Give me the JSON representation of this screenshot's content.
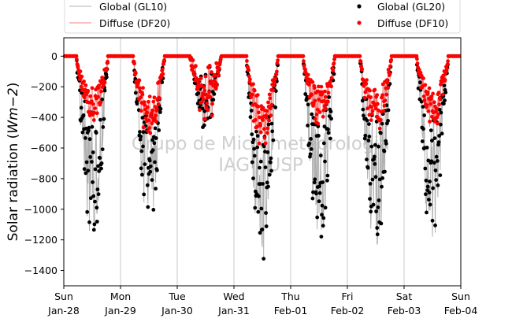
{
  "chart_data": {
    "type": "line",
    "title": "",
    "ylabel": "Solar radiation (Wm−2)",
    "ylabel_parts": [
      "Solar radiation (",
      "Wm",
      "−2",
      ")"
    ],
    "ylim": [
      -1500,
      120
    ],
    "yticks": [
      0,
      -200,
      -400,
      -600,
      -800,
      -1000,
      -1200,
      -1400
    ],
    "xlim_days": [
      0,
      7
    ],
    "xticks": [
      {
        "day": "Sun",
        "date": "Jan-28"
      },
      {
        "day": "Mon",
        "date": "Jan-29"
      },
      {
        "day": "Tue",
        "date": "Jan-30"
      },
      {
        "day": "Wed",
        "date": "Jan-31"
      },
      {
        "day": "Thu",
        "date": "Feb-01"
      },
      {
        "day": "Fri",
        "date": "Feb-02"
      },
      {
        "day": "Sat",
        "date": "Feb-03"
      },
      {
        "day": "Sun",
        "date": "Feb-04"
      }
    ],
    "grid": "x-major",
    "legend_position": "top",
    "watermark": [
      "Grupo de Micrometeorologia",
      "IAG / USP"
    ],
    "colors": {
      "gl10": "#b0b0b0",
      "df20": "#f08080",
      "gl20": "#000000",
      "df10": "#ff0000"
    },
    "series": [
      {
        "name": "Global (GL10)",
        "style": "line",
        "color": "#b0b0b0"
      },
      {
        "name": "Diffuse (DF20)",
        "style": "line",
        "color": "#f08080"
      },
      {
        "name": "Global (GL20)",
        "style": "marker",
        "color": "#000000"
      },
      {
        "name": "Diffuse (DF10)",
        "style": "marker",
        "color": "#ff0000"
      }
    ],
    "daily_profiles": [
      {
        "date": "Jan-28",
        "global_min": -1140,
        "diffuse_min": -460
      },
      {
        "date": "Jan-29",
        "global_min": -1050,
        "diffuse_min": -540
      },
      {
        "date": "Jan-30",
        "global_min": -490,
        "diffuse_min": -480
      },
      {
        "date": "Jan-31",
        "global_min": -1310,
        "diffuse_min": -620
      },
      {
        "date": "Feb-01",
        "global_min": -1210,
        "diffuse_min": -470
      },
      {
        "date": "Feb-02",
        "global_min": -1240,
        "diffuse_min": -490
      },
      {
        "date": "Feb-03",
        "global_min": -1180,
        "diffuse_min": -480
      }
    ]
  }
}
